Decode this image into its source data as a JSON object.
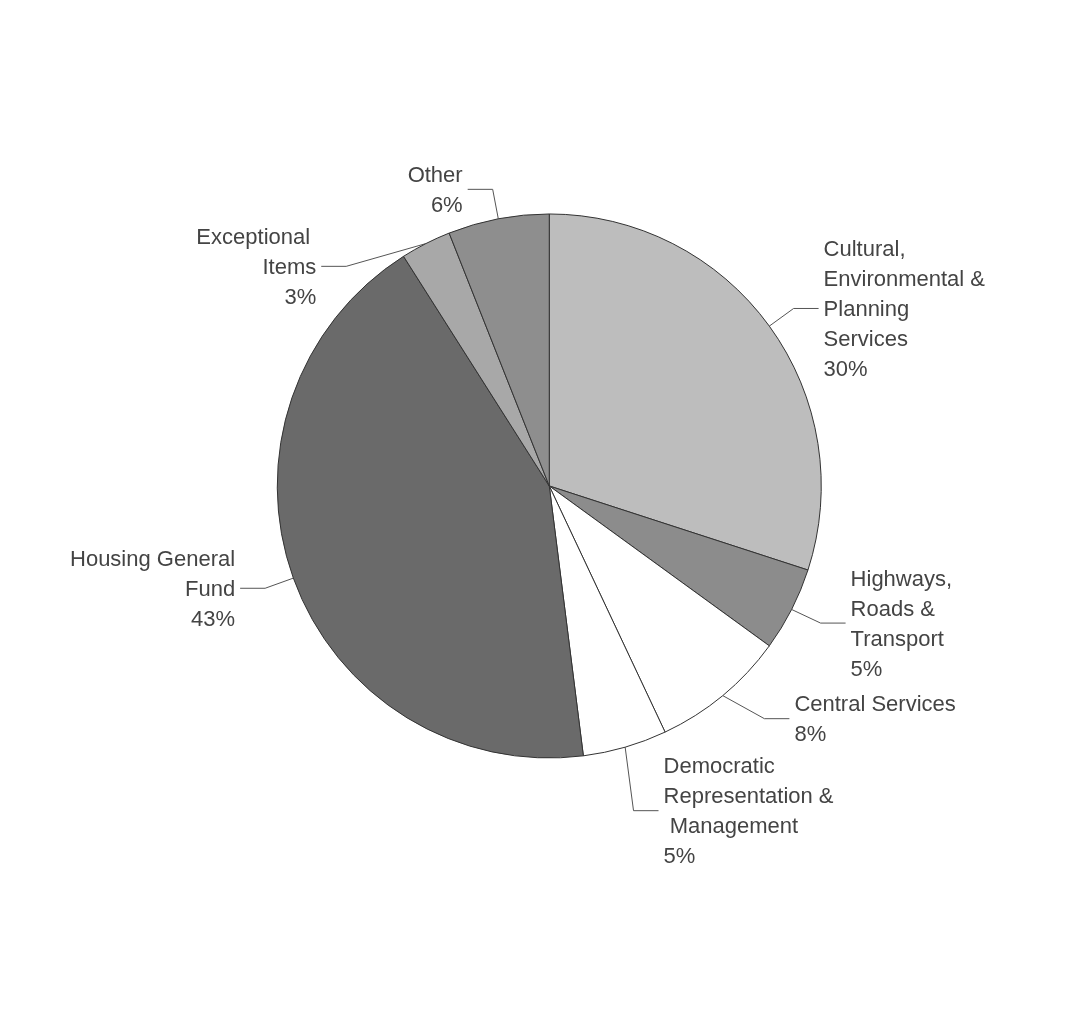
{
  "chart_data": {
    "type": "pie",
    "categories": [
      "Cultural, Environmental & Planning Services",
      "Highways, Roads & Transport",
      "Central Services",
      "Democratic Representation & Management",
      "Housing General Fund",
      "Exceptional Items",
      "Other"
    ],
    "values": [
      30,
      5,
      8,
      5,
      43,
      3,
      6
    ],
    "value_labels": [
      "30%",
      "5%",
      "8%",
      "5%",
      "43%",
      "3%",
      "6%"
    ],
    "colors": [
      "#bdbdbd",
      "#8c8c8c",
      "#ffffff",
      "#ffffff",
      "#6a6a6a",
      "#a8a8a8",
      "#8e8e8e"
    ],
    "legend": false
  }
}
